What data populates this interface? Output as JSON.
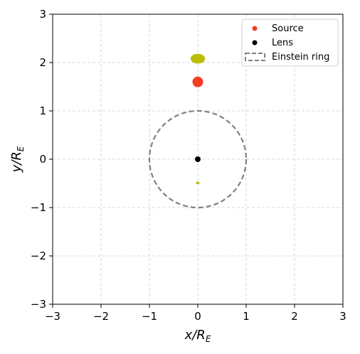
{
  "chart_data": {
    "type": "scatter",
    "xlabel_main": "x",
    "xlabel_sub": "E",
    "xlabel_prefix": "/R",
    "ylabel_main": "y",
    "ylabel_sub": "E",
    "ylabel_prefix": "/R",
    "xlim": [
      -3,
      3
    ],
    "ylim": [
      -3,
      3
    ],
    "xticks": [
      -3,
      -2,
      -1,
      0,
      1,
      2,
      3
    ],
    "yticks": [
      -3,
      -2,
      -1,
      0,
      1,
      2,
      3
    ],
    "tick_labels": [
      "−3",
      "−2",
      "−1",
      "0",
      "1",
      "2",
      "3"
    ],
    "grid": true,
    "legend_position": "top-right",
    "series": [
      {
        "name": "Source",
        "kind": "point",
        "color": "#f53d22",
        "points": [
          {
            "x": 0.0,
            "y": 1.6
          }
        ]
      },
      {
        "name": "Lens",
        "kind": "point",
        "color": "#000000",
        "points": [
          {
            "x": 0.0,
            "y": 0.0
          }
        ]
      },
      {
        "name": "Einstein ring",
        "kind": "circle",
        "color": "#808080",
        "center": [
          0,
          0
        ],
        "radius": 1.0
      }
    ],
    "images": [
      {
        "color": "#bcbd00",
        "x": 0.0,
        "y": 2.08,
        "rx": 0.15,
        "ry": 0.1
      },
      {
        "color": "#bcbd00",
        "x": 0.0,
        "y": -0.49,
        "rx": 0.04,
        "ry": 0.025
      }
    ],
    "source_size": {
      "rx": 0.11,
      "ry": 0.11
    }
  }
}
